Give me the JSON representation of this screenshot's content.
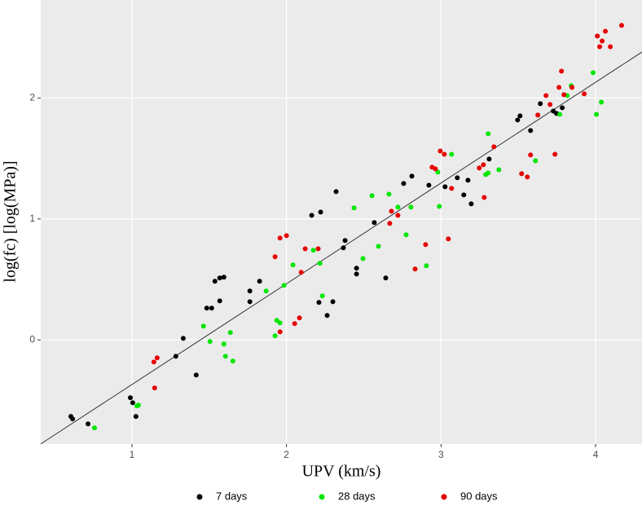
{
  "chart_data": {
    "type": "scatter",
    "x_label": "UPV (km/s)",
    "y_label": "log(fc) [log(MPa)]",
    "xlim": [
      0.41,
      4.3
    ],
    "ylim": [
      -0.86,
      2.81
    ],
    "xticks": [
      1,
      2,
      3,
      4
    ],
    "yticks": [
      0,
      1,
      2
    ],
    "grid": true,
    "legend": "bottom",
    "fit_line": {
      "x": [
        0.41,
        4.3
      ],
      "y": [
        -0.86,
        2.38
      ],
      "color": "#333333"
    },
    "series": [
      {
        "name": "7 days",
        "color": "#000000",
        "x": [
          0.605,
          0.616,
          0.716,
          0.99,
          1.005,
          1.026,
          1.284,
          1.332,
          1.416,
          1.484,
          1.516,
          1.537,
          1.568,
          1.595,
          1.568,
          1.763,
          1.763,
          1.826,
          2.163,
          2.221,
          2.21,
          2.263,
          2.3,
          2.321,
          2.379,
          2.368,
          2.453,
          2.453,
          2.568,
          2.642,
          2.758,
          2.811,
          2.921,
          3.026,
          3.105,
          3.147,
          3.174,
          3.195,
          3.311,
          3.495,
          3.511,
          3.579,
          3.642,
          3.726,
          3.747,
          3.784
        ],
        "y": [
          -0.633,
          -0.653,
          -0.694,
          -0.478,
          -0.519,
          -0.633,
          -0.135,
          0.013,
          -0.29,
          0.263,
          0.263,
          0.485,
          0.512,
          0.519,
          0.323,
          0.404,
          0.316,
          0.485,
          1.03,
          1.057,
          0.31,
          0.202,
          0.316,
          1.226,
          0.822,
          0.761,
          0.593,
          0.545,
          0.97,
          0.512,
          1.293,
          1.354,
          1.279,
          1.266,
          1.34,
          1.199,
          1.32,
          1.125,
          1.495,
          1.818,
          1.852,
          1.731,
          1.953,
          1.892,
          1.872,
          1.919
        ]
      },
      {
        "name": "28 days",
        "color": "#00e600",
        "x": [
          0.758,
          1.032,
          1.042,
          1.463,
          1.505,
          1.595,
          1.605,
          1.637,
          1.653,
          1.868,
          1.926,
          1.937,
          1.958,
          1.984,
          2.042,
          2.174,
          2.216,
          2.232,
          2.437,
          2.495,
          2.553,
          2.595,
          2.663,
          2.721,
          2.774,
          2.805,
          2.905,
          2.979,
          2.989,
          3.068,
          3.289,
          3.305,
          3.305,
          3.374,
          3.611,
          3.768,
          3.816,
          3.842,
          3.984,
          4.005,
          4.037
        ],
        "y": [
          -0.727,
          -0.545,
          -0.539,
          0.114,
          -0.013,
          -0.034,
          -0.135,
          0.061,
          -0.175,
          0.404,
          0.034,
          0.162,
          0.141,
          0.451,
          0.62,
          0.741,
          0.633,
          0.364,
          1.091,
          0.673,
          1.192,
          0.774,
          1.205,
          1.098,
          0.869,
          1.098,
          0.613,
          1.387,
          1.104,
          1.535,
          1.367,
          1.38,
          1.704,
          1.407,
          1.481,
          1.865,
          2.02,
          2.101,
          2.209,
          1.865,
          1.966
        ]
      },
      {
        "name": "90 days",
        "color": "#e60000",
        "x": [
          1.142,
          1.163,
          1.147,
          1.926,
          1.958,
          1.958,
          2.0,
          2.053,
          2.084,
          2.095,
          2.121,
          2.205,
          2.668,
          2.679,
          2.721,
          2.832,
          2.9,
          2.942,
          2.963,
          2.995,
          3.021,
          3.047,
          3.068,
          3.247,
          3.279,
          3.274,
          3.342,
          3.521,
          3.558,
          3.579,
          3.626,
          3.679,
          3.705,
          3.737,
          3.763,
          3.779,
          3.795,
          3.847,
          3.926,
          4.011,
          4.026,
          4.042,
          4.063,
          4.095,
          4.168
        ],
        "y": [
          -0.182,
          -0.148,
          -0.397,
          0.687,
          0.842,
          0.067,
          0.862,
          0.135,
          0.182,
          0.559,
          0.754,
          0.754,
          0.963,
          1.064,
          1.03,
          0.586,
          0.788,
          1.428,
          1.414,
          1.562,
          1.535,
          0.835,
          1.253,
          1.421,
          1.178,
          1.448,
          1.596,
          1.374,
          1.347,
          1.529,
          1.859,
          2.02,
          1.946,
          1.535,
          2.088,
          2.222,
          2.027,
          2.088,
          2.034,
          2.512,
          2.424,
          2.471,
          2.552,
          2.424,
          2.6
        ]
      }
    ]
  }
}
